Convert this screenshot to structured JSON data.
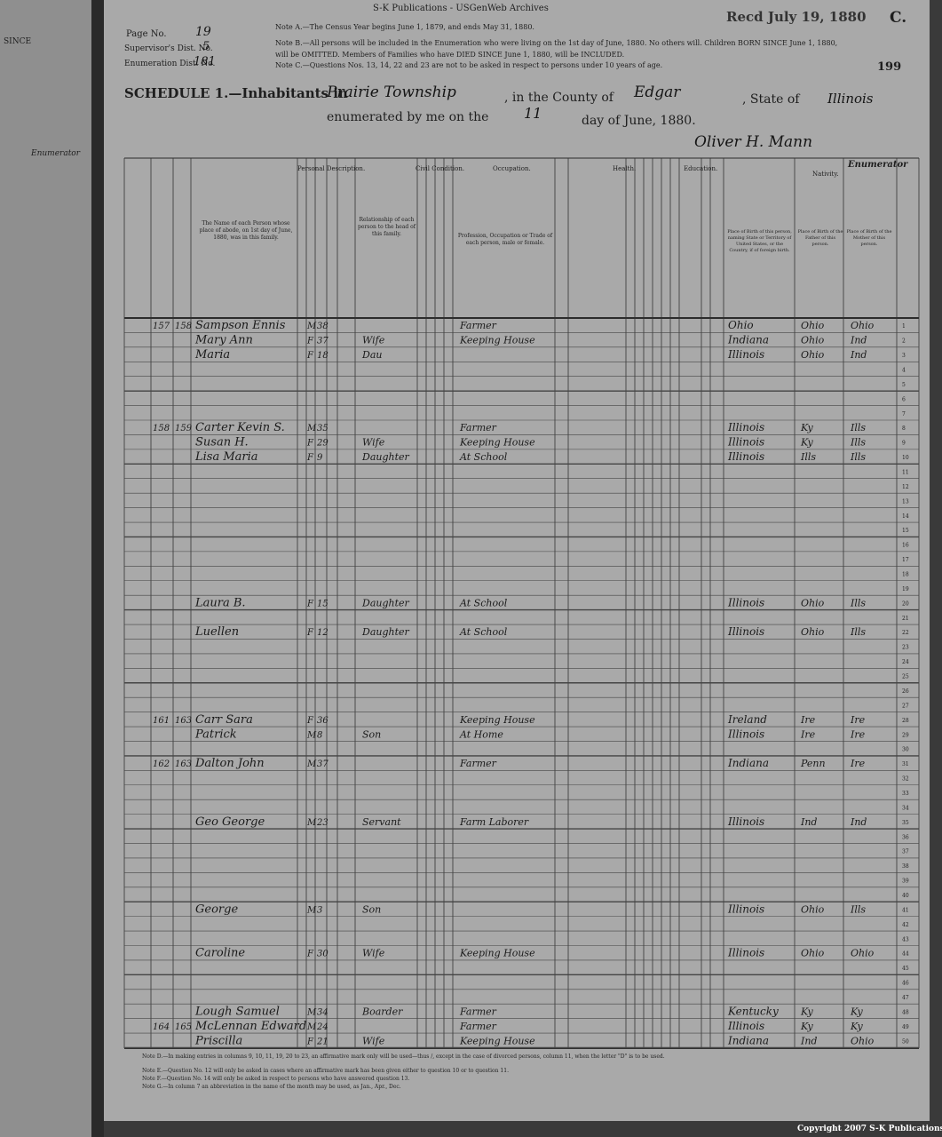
{
  "left_page": {
    "since": "SINCE",
    "enumerator": "Enumerator"
  },
  "header": {
    "publisher": "S-K Publications - USGenWeb Archives",
    "received": "Recd July 19, 1880",
    "corner_letter": "C.",
    "page_number": "199",
    "page_no_label": "Page No.",
    "page_no_value": "19",
    "supervisor_label": "Supervisor's Dist. No.",
    "supervisor_value": "5",
    "enumeration_label": "Enumeration Dist. No.",
    "enumeration_value": "181",
    "note_a": "Note A.—The Census Year begins June 1, 1879, and ends May 31, 1880.",
    "note_b": "Note B.—All persons will be included in the Enumeration who were living on the 1st day of June, 1880. No others will. Children BORN SINCE June 1, 1880, will be OMITTED. Members of Families who have DIED SINCE June 1, 1880, will be INCLUDED.",
    "note_c": "Note C.—Questions Nos. 13, 14, 22 and 23 are not to be asked in respect to persons under 10 years of age."
  },
  "schedule": {
    "label": "SCHEDULE 1.—Inhabitants in",
    "township": "Prairie Township",
    "county_label": ", in the County of",
    "county": "Edgar",
    "state_label": ", State of",
    "state": "Illinois",
    "enumerated_label": "enumerated by me on the",
    "day": "11",
    "month_label": "day of June, 1880.",
    "signature": "Oliver H. Mann",
    "enumerator": "Enumerator"
  },
  "columns": {
    "personal": "Personal Description.",
    "civil": "Civil Condition.",
    "occupation": "Occupation.",
    "health": "Health.",
    "education": "Education.",
    "nativity": "Nativity.",
    "name": "The Name of each Person whose place of abode, on 1st day of June, 1880, was in this family.",
    "relationship": "Relationship of each person to the head of this family.",
    "profession": "Profession, Occupation or Trade of each person, male or female.",
    "birth": "Place of Birth of this person, naming State or Territory of United States, or the Country, if of foreign birth.",
    "father": "Place of Birth of the Father of this person.",
    "mother": "Place of Birth of the Mother of this person."
  },
  "table": {
    "line_numbers": [
      "1",
      "2",
      "3",
      "4",
      "5",
      "6",
      "7",
      "8",
      "9",
      "10",
      "11",
      "12",
      "13",
      "14",
      "15",
      "16",
      "17",
      "18",
      "19",
      "20",
      "21",
      "22",
      "23",
      "24",
      "25",
      "26",
      "27",
      "28",
      "29",
      "30",
      "31",
      "32",
      "33",
      "34",
      "35",
      "36",
      "37",
      "38",
      "39",
      "40",
      "41",
      "42",
      "43",
      "44",
      "45",
      "46",
      "47",
      "48",
      "49",
      "50"
    ],
    "rows": [
      {
        "line": 0,
        "dwelling": "157",
        "family": "158",
        "name": "Sampson Ennis",
        "sex": "M",
        "age": "38",
        "occupation": "Farmer",
        "birth": "Ohio",
        "father": "Ohio",
        "mother": "Ohio"
      },
      {
        "line": 1,
        "name": "Mary Ann",
        "relation": "Wife",
        "sex": "F",
        "age": "37",
        "occupation": "Keeping House",
        "birth": "Indiana",
        "father": "Ohio",
        "mother": "Ind"
      },
      {
        "line": 2,
        "name": "Maria",
        "relation": "Dau",
        "sex": "F",
        "age": "18",
        "birth": "Illinois",
        "father": "Ohio",
        "mother": "Ind"
      },
      {
        "line": 7,
        "dwelling": "158",
        "family": "159",
        "name": "Carter Kevin S.",
        "sex": "M",
        "age": "35",
        "occupation": "Farmer",
        "birth": "Illinois",
        "father": "Ky",
        "mother": "Ills"
      },
      {
        "line": 8,
        "name": "Susan H.",
        "relation": "Wife",
        "sex": "F",
        "age": "29",
        "occupation": "Keeping House",
        "birth": "Illinois",
        "father": "Ky",
        "mother": "Ills"
      },
      {
        "line": 9,
        "name": "Lisa Maria",
        "relation": "Daughter",
        "sex": "F",
        "age": "9",
        "occupation": "At School",
        "birth": "Illinois",
        "father": "Ills",
        "mother": "Ills"
      },
      {
        "line": 19,
        "name": "Laura B.",
        "relation": "Daughter",
        "sex": "F",
        "age": "15",
        "occupation": "At School",
        "birth": "Illinois",
        "father": "Ohio",
        "mother": "Ills"
      },
      {
        "line": 21,
        "name": "Luellen",
        "relation": "Daughter",
        "sex": "F",
        "age": "12",
        "occupation": "At School",
        "birth": "Illinois",
        "father": "Ohio",
        "mother": "Ills"
      },
      {
        "line": 27,
        "dwelling": "161",
        "family": "163",
        "name": "Carr Sara",
        "sex": "F",
        "age": "36",
        "occupation": "Keeping House",
        "birth": "Ireland",
        "father": "Ire",
        "mother": "Ire"
      },
      {
        "line": 28,
        "name": "Patrick",
        "relation": "Son",
        "sex": "M",
        "age": "8",
        "occupation": "At Home",
        "birth": "Illinois",
        "father": "Ire",
        "mother": "Ire"
      },
      {
        "line": 30,
        "dwelling": "162",
        "family": "163",
        "name": "Dalton John",
        "sex": "M",
        "age": "37",
        "occupation": "Farmer",
        "birth": "Indiana",
        "father": "Penn",
        "mother": "Ire"
      },
      {
        "line": 34,
        "name": "Geo George",
        "relation": "Servant",
        "sex": "M",
        "age": "23",
        "occupation": "Farm Laborer",
        "birth": "Illinois",
        "father": "Ind",
        "mother": "Ind"
      },
      {
        "line": 40,
        "name": "George",
        "relation": "Son",
        "sex": "M",
        "age": "3",
        "birth": "Illinois",
        "father": "Ohio",
        "mother": "Ills"
      },
      {
        "line": 43,
        "name": "Caroline",
        "relation": "Wife",
        "sex": "F",
        "age": "30",
        "occupation": "Keeping House",
        "birth": "Illinois",
        "father": "Ohio",
        "mother": "Ohio"
      },
      {
        "line": 47,
        "name": "Lough Samuel",
        "relation": "Boarder",
        "sex": "M",
        "age": "34",
        "occupation": "Farmer",
        "birth": "Kentucky",
        "father": "Ky",
        "mother": "Ky"
      },
      {
        "line": 48,
        "dwelling": "164",
        "family": "165",
        "name": "McLennan Edward",
        "sex": "M",
        "age": "24",
        "occupation": "Farmer",
        "birth": "Illinois",
        "father": "Ky",
        "mother": "Ky"
      },
      {
        "line": 49,
        "name": "Priscilla",
        "relation": "Wife",
        "sex": "F",
        "age": "21",
        "occupation": "Keeping House",
        "birth": "Indiana",
        "father": "Ind",
        "mother": "Ohio"
      }
    ]
  },
  "footer": {
    "note_d": "Note D.—In making entries in columns 9, 10, 11, 19, 20 to 23, an affirmative mark only will be used—thus /, except in the case of divorced persons, column 11, when the letter \"D\" is to be used.",
    "note_e": "Note E.—Question No. 12 will only be asked in cases where an affirmative mark has been given either to question 10 or to question 11.",
    "note_f": "Note F.—Question No. 14 will only be asked in respect to persons who have answered question 13.",
    "note_g": "Note G.—In column 7 an abbreviation in the name of the month may be used, as Jan., Apr., Dec.",
    "copyright": "Copyright 2007 S-K Publications"
  }
}
